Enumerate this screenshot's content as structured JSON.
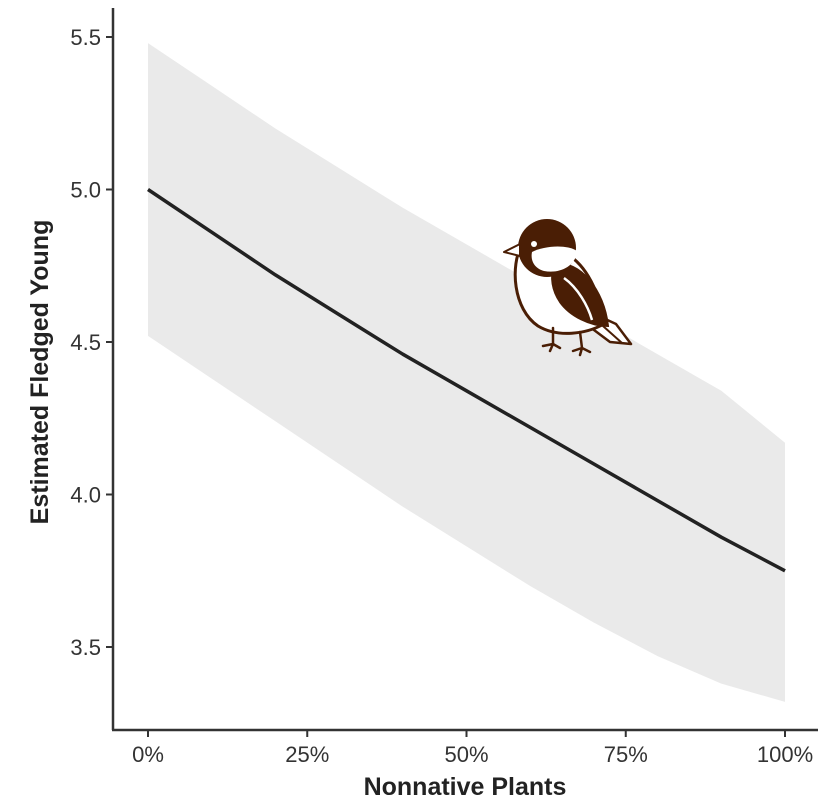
{
  "chart_data": {
    "type": "line",
    "title": "",
    "xlabel": "Nonnative Plants",
    "ylabel": "Estimated Fledged Young",
    "xlim": [
      0,
      100
    ],
    "ylim": [
      3.23,
      5.6
    ],
    "x_ticks": [
      0,
      25,
      50,
      75,
      100
    ],
    "x_tick_labels": [
      "0%",
      "25%",
      "50%",
      "75%",
      "100%"
    ],
    "y_ticks": [
      3.5,
      4.0,
      4.5,
      5.0,
      5.5
    ],
    "y_tick_labels": [
      "3.5",
      "4.0",
      "4.5",
      "5.0",
      "5.5"
    ],
    "grid": false,
    "series": [
      {
        "x": [
          0,
          10,
          20,
          30,
          40,
          50,
          60,
          70,
          80,
          90,
          100
        ],
        "y": [
          5.0,
          4.86,
          4.72,
          4.59,
          4.46,
          4.34,
          4.22,
          4.1,
          3.98,
          3.86,
          3.75
        ],
        "lower": [
          4.52,
          4.38,
          4.24,
          4.1,
          3.96,
          3.83,
          3.7,
          3.58,
          3.47,
          3.38,
          3.32
        ],
        "upper": [
          5.48,
          5.34,
          5.2,
          5.07,
          4.94,
          4.82,
          4.7,
          4.58,
          4.46,
          4.34,
          4.17
        ],
        "color": "#222222",
        "band_color": "#eaeaea"
      }
    ]
  },
  "colors": {
    "axis": "#333333",
    "bird_dark": "#4a1e05",
    "bird_light": "#ffffff"
  }
}
